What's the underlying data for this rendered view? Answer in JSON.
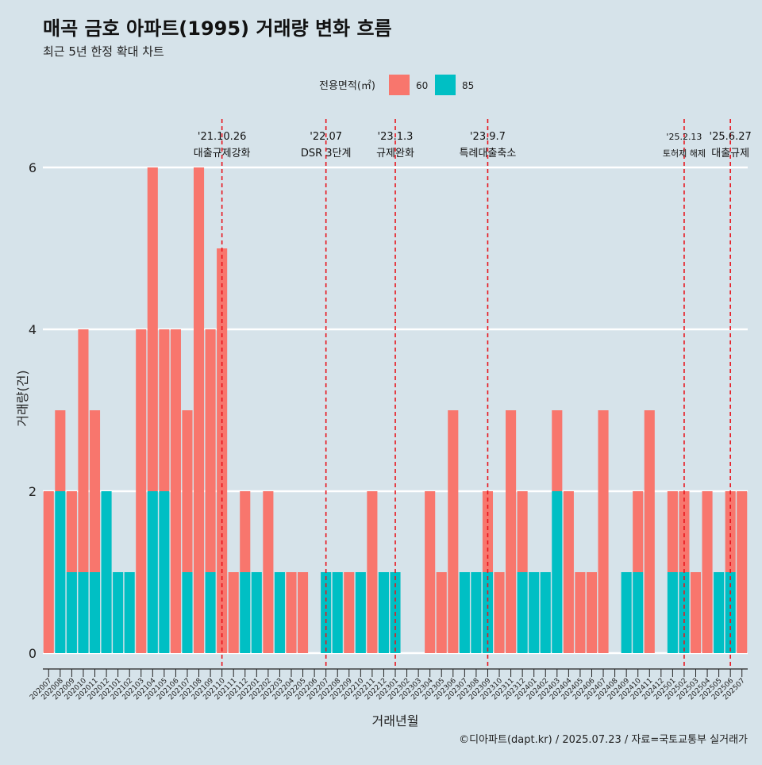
{
  "header": {
    "title": "매곡 금호 아파트(1995) 거래량 변화 흐름",
    "subtitle": "최근 5년 한정 확대 차트"
  },
  "legend": {
    "title": "전용면적(㎡)",
    "items": [
      {
        "label": "60",
        "color": "#F8766D"
      },
      {
        "label": "85",
        "color": "#00BFC4"
      }
    ]
  },
  "caption": "©디아파트(dapt.kr) / 2025.07.23 / 자료=국토교통부 실거래가",
  "chart_data": {
    "type": "bar",
    "xlabel": "거래년월",
    "ylabel": "거래량(건)",
    "ylim": [
      0,
      6
    ],
    "yticks": [
      0,
      2,
      4,
      6
    ],
    "grid": true,
    "legend_position": "top",
    "categories": [
      "202007",
      "202008",
      "202009",
      "202010",
      "202011",
      "202012",
      "202101",
      "202102",
      "202103",
      "202104",
      "202105",
      "202106",
      "202107",
      "202108",
      "202109",
      "202110",
      "202111",
      "202112",
      "202201",
      "202202",
      "202203",
      "202204",
      "202205",
      "202206",
      "202207",
      "202208",
      "202209",
      "202210",
      "202211",
      "202212",
      "202301",
      "202302",
      "202303",
      "202304",
      "202305",
      "202306",
      "202307",
      "202308",
      "202309",
      "202310",
      "202311",
      "202312",
      "202401",
      "202402",
      "202403",
      "202404",
      "202405",
      "202406",
      "202407",
      "202408",
      "202409",
      "202410",
      "202411",
      "202412",
      "202501",
      "202502",
      "202503",
      "202504",
      "202505",
      "202506",
      "202507"
    ],
    "series": [
      {
        "name": "60",
        "color": "#F8766D",
        "values": [
          2,
          1,
          1,
          3,
          2,
          0,
          0,
          0,
          4,
          4,
          2,
          4,
          2,
          6,
          3,
          5,
          1,
          1,
          0,
          2,
          0,
          1,
          1,
          0,
          0,
          0,
          1,
          0,
          2,
          0,
          0,
          0,
          0,
          2,
          1,
          3,
          0,
          0,
          1,
          1,
          3,
          1,
          0,
          0,
          1,
          2,
          1,
          1,
          3,
          0,
          0,
          1,
          3,
          0,
          1,
          1,
          1,
          2,
          0,
          1,
          2
        ]
      },
      {
        "name": "85",
        "color": "#00BFC4",
        "values": [
          0,
          2,
          1,
          1,
          1,
          2,
          1,
          1,
          0,
          2,
          2,
          0,
          1,
          0,
          1,
          0,
          0,
          1,
          1,
          0,
          1,
          0,
          0,
          0,
          1,
          1,
          0,
          1,
          0,
          1,
          1,
          0,
          0,
          0,
          0,
          0,
          1,
          1,
          1,
          0,
          0,
          1,
          1,
          1,
          2,
          0,
          0,
          0,
          0,
          0,
          1,
          1,
          0,
          0,
          1,
          1,
          0,
          0,
          1,
          1,
          0
        ]
      }
    ],
    "annotations": [
      {
        "x": "202110",
        "date": "'21.10.26",
        "label": "대출규제강화"
      },
      {
        "x": "202207",
        "date": "'22.07",
        "label": "DSR 3단계"
      },
      {
        "x": "202301",
        "date": "'23.1.3",
        "label": "규제완화"
      },
      {
        "x": "202309",
        "date": "'23.9.7",
        "label": "특례대출축소"
      },
      {
        "x": "202502",
        "date": "'25.2.13",
        "label": "토허제 해제"
      },
      {
        "x": "202506",
        "date": "'25.6.27",
        "label": "대출규제"
      }
    ]
  }
}
